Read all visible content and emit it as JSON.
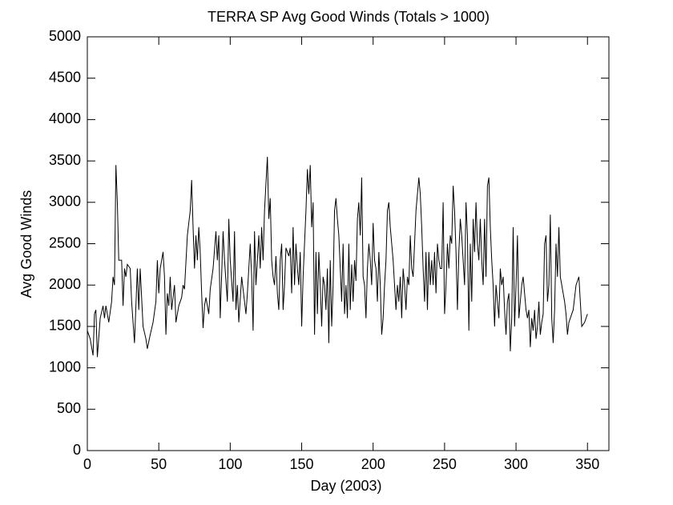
{
  "chart_data": {
    "type": "line",
    "title": "TERRA SP Avg Good Winds (Totals > 1000)",
    "x_label": "Day (2003)",
    "y_label": "Avg Good Winds",
    "xlim": [
      0,
      365
    ],
    "xticks": [
      0,
      50,
      100,
      150,
      200,
      250,
      300,
      350
    ],
    "ylim": [
      0,
      5000
    ],
    "yticks": [
      0,
      500,
      1000,
      1500,
      2000,
      2500,
      3000,
      3500,
      4000,
      4500,
      5000
    ],
    "series": [
      {
        "color": "#000000",
        "x": [
          0,
          2,
          4,
          5,
          6,
          7,
          9,
          11,
          12,
          13,
          15,
          17,
          18,
          19,
          20,
          21,
          22,
          24,
          25,
          26,
          27,
          28,
          30,
          31,
          33,
          35,
          36,
          37,
          39,
          41,
          42,
          44,
          46,
          48,
          49,
          50,
          51,
          53,
          54,
          55,
          56,
          57,
          58,
          59,
          61,
          62,
          64,
          66,
          67,
          68,
          70,
          72,
          73,
          74,
          75,
          76,
          77,
          78,
          79,
          80,
          81,
          82,
          83,
          85,
          86,
          88,
          90,
          91,
          92,
          93,
          95,
          96,
          98,
          99,
          100,
          102,
          103,
          104,
          105,
          106,
          108,
          110,
          111,
          112,
          113,
          114,
          115,
          116,
          117,
          118,
          120,
          121,
          122,
          123,
          124,
          126,
          127,
          128,
          129,
          130,
          131,
          132,
          133,
          134,
          135,
          136,
          137,
          138,
          139,
          140,
          141,
          142,
          143,
          144,
          145,
          146,
          147,
          148,
          149,
          150,
          151,
          152,
          153,
          154,
          155,
          156,
          157,
          158,
          159,
          160,
          161,
          162,
          163,
          164,
          165,
          166,
          167,
          168,
          169,
          170,
          171,
          172,
          173,
          174,
          175,
          176,
          177,
          178,
          179,
          180,
          181,
          182,
          183,
          184,
          185,
          186,
          187,
          188,
          189,
          190,
          191,
          192,
          193,
          194,
          195,
          196,
          197,
          198,
          199,
          200,
          201,
          202,
          203,
          204,
          205,
          206,
          207,
          208,
          209,
          210,
          211,
          212,
          213,
          214,
          215,
          216,
          217,
          218,
          219,
          220,
          221,
          222,
          223,
          224,
          225,
          226,
          227,
          228,
          229,
          230,
          231,
          232,
          233,
          234,
          235,
          236,
          237,
          238,
          239,
          240,
          241,
          242,
          243,
          244,
          245,
          246,
          247,
          248,
          249,
          250,
          251,
          252,
          253,
          254,
          255,
          256,
          257,
          258,
          259,
          260,
          261,
          262,
          263,
          264,
          265,
          266,
          267,
          268,
          269,
          270,
          271,
          272,
          273,
          274,
          275,
          276,
          277,
          278,
          279,
          280,
          281,
          282,
          283,
          284,
          285,
          286,
          287,
          288,
          289,
          290,
          291,
          292,
          293,
          294,
          295,
          296,
          297,
          298,
          299,
          300,
          301,
          302,
          303,
          304,
          305,
          306,
          307,
          308,
          309,
          310,
          311,
          312,
          313,
          314,
          315,
          316,
          317,
          318,
          319,
          320,
          321,
          322,
          323,
          324,
          325,
          326,
          327,
          328,
          329,
          330,
          331,
          332,
          333,
          334,
          335,
          336,
          337,
          338,
          340,
          342,
          344,
          346,
          348,
          350
        ],
        "values": [
          1450,
          1350,
          1150,
          1650,
          1700,
          1130,
          1600,
          1750,
          1600,
          1750,
          1550,
          1800,
          2100,
          2000,
          3450,
          3000,
          2300,
          2300,
          1750,
          2200,
          2100,
          2250,
          2200,
          1800,
          1300,
          2200,
          1700,
          2200,
          1500,
          1350,
          1230,
          1400,
          1550,
          1800,
          2300,
          1900,
          2200,
          2400,
          2100,
          1400,
          1900,
          1750,
          2100,
          1700,
          2000,
          1550,
          1750,
          1850,
          2000,
          1950,
          2600,
          2900,
          3270,
          2700,
          2200,
          2600,
          2300,
          2700,
          2400,
          1900,
          1480,
          1750,
          1850,
          1650,
          1950,
          2200,
          2650,
          2300,
          2600,
          1600,
          2650,
          2300,
          1800,
          2800,
          2300,
          1800,
          2650,
          1700,
          2000,
          1550,
          2100,
          1800,
          1650,
          1900,
          2200,
          2500,
          2100,
          1450,
          2650,
          2000,
          2600,
          2200,
          2700,
          2300,
          2900,
          3550,
          2800,
          3050,
          2300,
          2100,
          2000,
          2350,
          1900,
          1700,
          2300,
          2500,
          1700,
          2000,
          2450,
          2400,
          2350,
          2450,
          1900,
          2700,
          2000,
          2500,
          2200,
          2000,
          2400,
          1500,
          2100,
          2500,
          2900,
          3400,
          3100,
          3450,
          2700,
          3000,
          1400,
          2400,
          1650,
          2400,
          2000,
          1500,
          2100,
          2000,
          1700,
          2200,
          1300,
          2300,
          1500,
          2000,
          2900,
          3050,
          2800,
          2600,
          2200,
          1800,
          2500,
          1650,
          2000,
          1600,
          2500,
          1700,
          2250,
          1800,
          2300,
          2050,
          2800,
          3000,
          2600,
          3300,
          2100,
          2000,
          1600,
          2200,
          2500,
          2300,
          2000,
          2750,
          2300,
          2200,
          1800,
          2400,
          2000,
          1400,
          1600,
          2000,
          2300,
          2900,
          3000,
          2700,
          2500,
          2300,
          2000,
          1700,
          2000,
          1800,
          2100,
          1600,
          2200,
          2000,
          1700,
          2100,
          2000,
          2600,
          2200,
          2100,
          2500,
          2900,
          3100,
          3300,
          3100,
          2700,
          2200,
          1800,
          2400,
          1700,
          2400,
          2000,
          2300,
          2000,
          2400,
          1900,
          2500,
          2300,
          2200,
          2200,
          3000,
          1650,
          2000,
          2500,
          2200,
          2600,
          2500,
          3200,
          2900,
          2400,
          1700,
          2400,
          2800,
          2600,
          2300,
          2000,
          3000,
          2600,
          1450,
          2500,
          1800,
          2800,
          2400,
          3000,
          2500,
          2300,
          2800,
          2300,
          2000,
          2800,
          2100,
          3200,
          3300,
          2700,
          2300,
          2000,
          1500,
          2000,
          1800,
          1600,
          2200,
          2000,
          2100,
          1700,
          1400,
          1800,
          1900,
          1200,
          1600,
          2700,
          1500,
          2000,
          2600,
          1600,
          1800,
          2000,
          2100,
          1900,
          1700,
          1600,
          1700,
          1250,
          1600,
          1450,
          1700,
          1350,
          1500,
          1800,
          1400,
          1550,
          1650,
          2500,
          2600,
          1800,
          2000,
          2850,
          1600,
          1300,
          1700,
          2500,
          2100,
          2700,
          2100,
          2000,
          1900,
          1800,
          1650,
          1400,
          1550,
          1600,
          1700,
          2000,
          2100,
          1500,
          1550,
          1650
        ]
      }
    ]
  }
}
